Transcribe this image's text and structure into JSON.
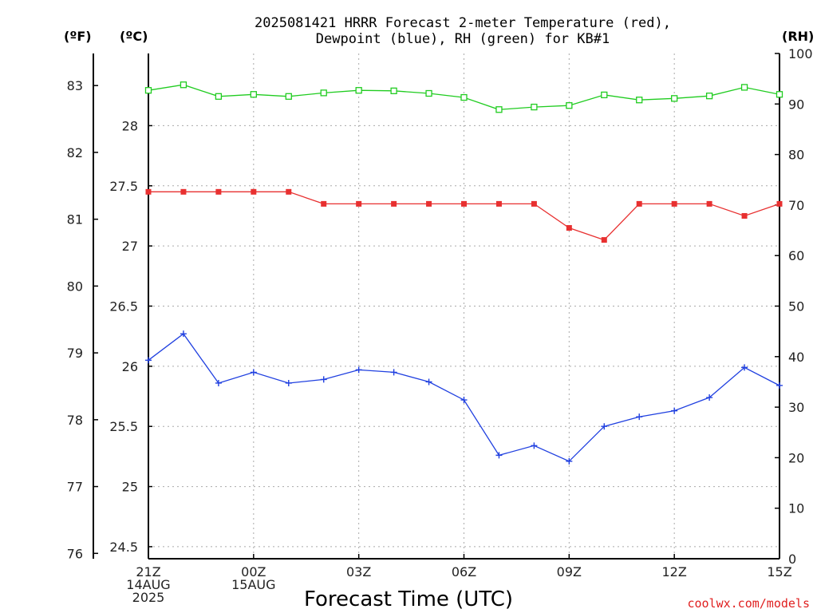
{
  "title_line1": "2025081421 HRRR Forecast 2-meter Temperature (red),",
  "title_line2": "Dewpoint (blue), RH (green) for KB#1",
  "unit_f": "(ºF)",
  "unit_c": "(ºC)",
  "unit_rh": "(RH)",
  "xlabel": "Forecast Time (UTC)",
  "credit": "coolwx.com/models",
  "colors": {
    "temperature": "#e83030",
    "dewpoint": "#2040e0",
    "rh": "#20cc20"
  },
  "chart_data": {
    "type": "line",
    "title": "2025081421 HRRR Forecast 2-meter Temperature (red), Dewpoint (blue), RH (green) for KB#1",
    "xlabel": "Forecast Time (UTC)",
    "grid": true,
    "x_ticks": [
      {
        "hour": 0,
        "lines": [
          "21Z",
          "14AUG",
          "2025"
        ]
      },
      {
        "hour": 3,
        "lines": [
          "00Z",
          "15AUG"
        ]
      },
      {
        "hour": 6,
        "lines": [
          "03Z"
        ]
      },
      {
        "hour": 9,
        "lines": [
          "06Z"
        ]
      },
      {
        "hour": 12,
        "lines": [
          "09Z"
        ]
      },
      {
        "hour": 15,
        "lines": [
          "12Z"
        ]
      },
      {
        "hour": 18,
        "lines": [
          "15Z"
        ]
      }
    ],
    "x_hours": [
      0,
      1,
      2,
      3,
      4,
      5,
      6,
      7,
      8,
      9,
      10,
      11,
      12,
      13,
      14,
      15,
      16,
      17,
      18
    ],
    "xlim": [
      0,
      18
    ],
    "axes": {
      "celsius": {
        "range": [
          24.4,
          28.6
        ],
        "ticks": [
          24.5,
          25,
          25.5,
          26,
          26.5,
          27,
          27.5,
          28
        ]
      },
      "fahrenheit": {
        "ticks": [
          76,
          77,
          78,
          79,
          80,
          81,
          82,
          83
        ]
      },
      "rh": {
        "range": [
          0,
          100
        ],
        "ticks": [
          0,
          10,
          20,
          30,
          40,
          50,
          60,
          70,
          80,
          90,
          100
        ]
      }
    },
    "series": [
      {
        "key": "temperature",
        "axis": "celsius",
        "marker": "filled-square",
        "values": [
          27.45,
          27.45,
          27.45,
          27.45,
          27.45,
          27.35,
          27.35,
          27.35,
          27.35,
          27.35,
          27.35,
          27.35,
          27.15,
          27.05,
          27.35,
          27.35,
          27.35,
          27.25,
          27.35
        ]
      },
      {
        "key": "dewpoint",
        "axis": "celsius",
        "marker": "plus",
        "values": [
          26.05,
          26.27,
          25.86,
          25.95,
          25.86,
          25.89,
          25.97,
          25.95,
          25.87,
          25.72,
          25.26,
          25.34,
          25.21,
          25.5,
          25.58,
          25.63,
          25.74,
          25.99,
          25.84
        ]
      },
      {
        "key": "rh",
        "axis": "rh",
        "marker": "open-square",
        "values": [
          92.7,
          93.8,
          91.5,
          91.9,
          91.5,
          92.2,
          92.7,
          92.6,
          92.1,
          91.3,
          88.9,
          89.4,
          89.7,
          91.8,
          90.8,
          91.1,
          91.6,
          93.3,
          91.9
        ]
      }
    ]
  }
}
